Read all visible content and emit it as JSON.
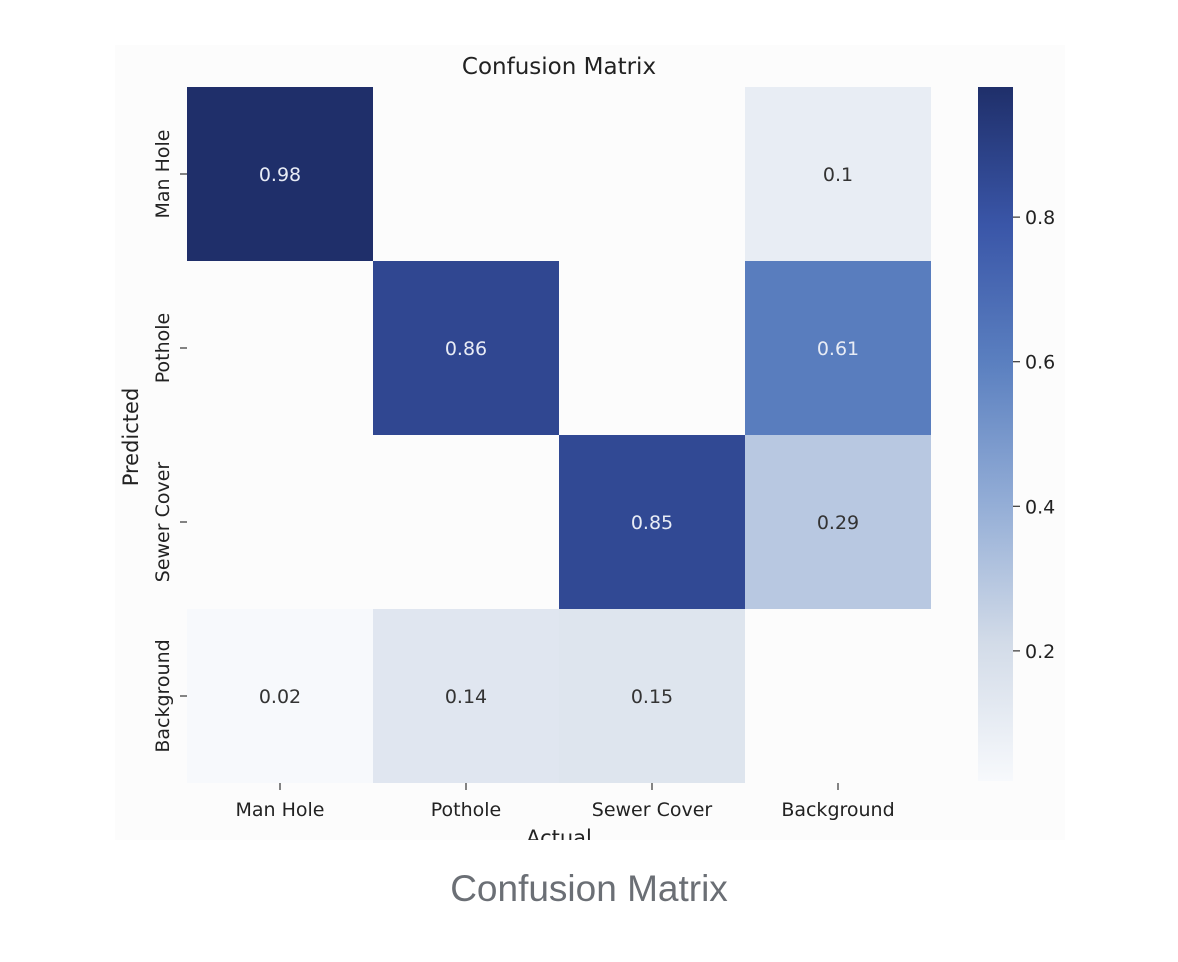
{
  "caption": "Confusion Matrix",
  "chart_data": {
    "type": "heatmap",
    "title": "Confusion Matrix",
    "xlabel": "Actual",
    "ylabel": "Predicted",
    "x_categories": [
      "Man Hole",
      "Pothole",
      "Sewer Cover",
      "Background"
    ],
    "y_categories": [
      "Man Hole",
      "Pothole",
      "Sewer Cover",
      "Background"
    ],
    "values": [
      [
        0.98,
        null,
        null,
        0.1
      ],
      [
        null,
        0.86,
        null,
        0.61
      ],
      [
        null,
        null,
        0.85,
        0.29
      ],
      [
        0.02,
        0.14,
        0.15,
        null
      ]
    ],
    "cell_labels": [
      [
        "0.98",
        "",
        "",
        "0.1"
      ],
      [
        "",
        "0.86",
        "",
        "0.61"
      ],
      [
        "",
        "",
        "0.85",
        "0.29"
      ],
      [
        "0.02",
        "0.14",
        "0.15",
        ""
      ]
    ],
    "colorbar": {
      "min": 0.02,
      "max": 0.98,
      "ticks": [
        0.2,
        0.4,
        0.6,
        0.8
      ],
      "tick_labels": [
        "0.2",
        "0.4",
        "0.6",
        "0.8"
      ]
    },
    "colormap": [
      "#f7f9fc",
      "#d2dbe8",
      "#93add6",
      "#5b80c0",
      "#3a56a8",
      "#1f2f6a"
    ],
    "grid": false
  }
}
